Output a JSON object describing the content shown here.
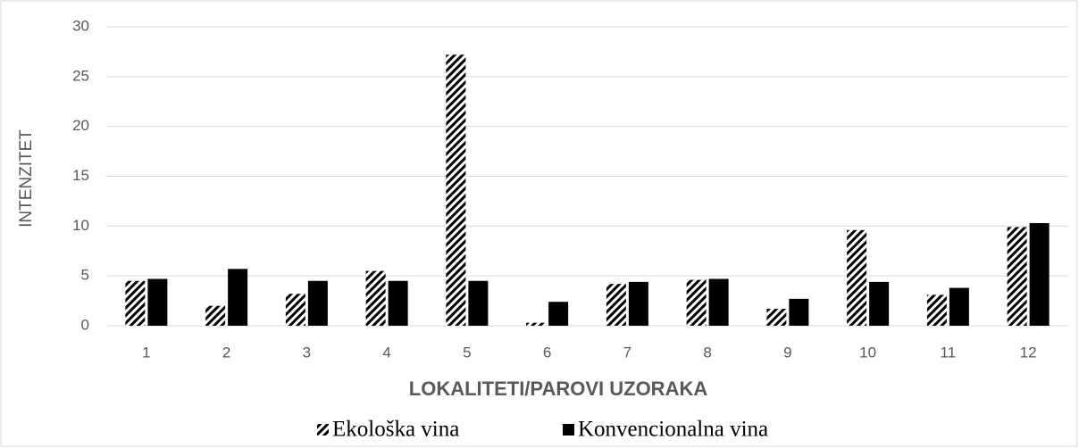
{
  "chart_data": {
    "type": "bar",
    "xlabel": "LOKALITETI/PAROVI UZORAKA",
    "ylabel": "INTENZITET",
    "categories": [
      "1",
      "2",
      "3",
      "4",
      "5",
      "6",
      "7",
      "8",
      "9",
      "10",
      "11",
      "12"
    ],
    "series": [
      {
        "name": "Ekološka vina",
        "color": "#000000",
        "pattern": "hatch",
        "values": [
          4.5,
          2.0,
          3.2,
          5.5,
          27.2,
          0.3,
          4.2,
          4.6,
          1.7,
          9.6,
          3.1,
          9.9
        ]
      },
      {
        "name": "Konvencionalna vina",
        "color": "#000000",
        "values": [
          4.7,
          5.7,
          4.5,
          4.5,
          4.5,
          2.4,
          4.4,
          4.7,
          2.7,
          4.4,
          3.8,
          10.3
        ]
      }
    ],
    "ylim": [
      0,
      30
    ],
    "yticks": [
      0,
      5,
      10,
      15,
      20,
      25,
      30
    ],
    "grid": true,
    "legend": "bottom"
  }
}
